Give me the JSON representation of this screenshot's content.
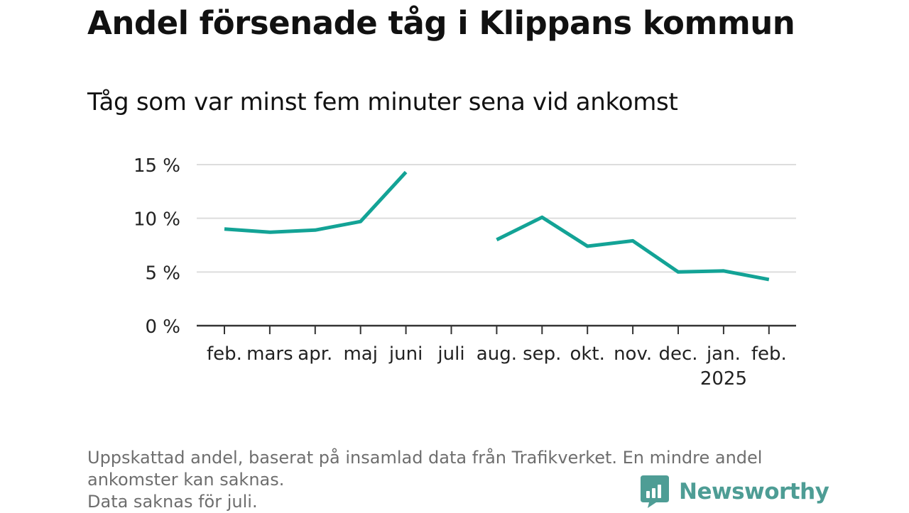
{
  "title": "Andel försenade tåg i Klippans kommun",
  "subtitle": "Tåg som var minst fem minuter sena vid ankomst",
  "footnote": {
    "line1": "Uppskattad andel, baserat på insamlad data från Trafikverket. En mindre andel",
    "line2": "ankomster kan saknas.",
    "line3": "Data saknas för juli."
  },
  "logo": {
    "text": "Newsworthy"
  },
  "colors": {
    "line": "#13a396",
    "grid": "#dddddd",
    "axis": "#333333",
    "logo": "#4e9d95"
  },
  "chart_data": {
    "type": "line",
    "title": "Andel försenade tåg i Klippans kommun",
    "subtitle": "Tåg som var minst fem minuter sena vid ankomst",
    "categories": [
      "feb.",
      "mars",
      "apr.",
      "maj",
      "juni",
      "juli",
      "aug.",
      "sep.",
      "okt.",
      "nov.",
      "dec.",
      "jan.",
      "feb."
    ],
    "year_label": {
      "category_index": 11,
      "text": "2025"
    },
    "series": [
      {
        "values": [
          9.0,
          8.7,
          8.9,
          9.7,
          14.3,
          null,
          8.0,
          10.1,
          7.4,
          7.9,
          5.0,
          5.1,
          4.3
        ]
      }
    ],
    "y_ticks": [
      0,
      5,
      10,
      15
    ],
    "y_tick_labels": [
      "0 %",
      "5 %",
      "10 %",
      "15 %"
    ],
    "ylim": [
      0,
      15
    ],
    "grid": true,
    "legend": "none"
  }
}
